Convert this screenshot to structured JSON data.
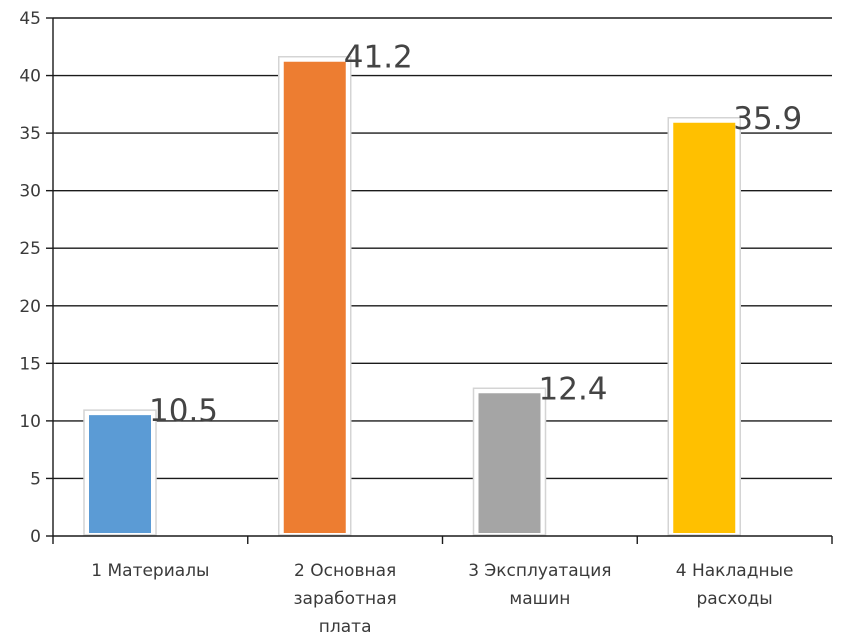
{
  "chart_data": {
    "type": "bar",
    "categories": [
      [
        "1 Материалы"
      ],
      [
        "2 Основная",
        "заработная",
        "плата"
      ],
      [
        "3 Эксплуатация",
        "машин"
      ],
      [
        "4 Накладные",
        "расходы"
      ]
    ],
    "values": [
      10.5,
      41.2,
      12.4,
      35.9
    ],
    "data_labels": [
      "10.5",
      "41.2",
      "12.4",
      "35.9"
    ],
    "bar_colors": [
      "#5b9bd5",
      "#ed7d31",
      "#a5a5a5",
      "#ffc000"
    ],
    "ylim": [
      0,
      45
    ],
    "yticks": [
      0,
      5,
      10,
      15,
      20,
      25,
      30,
      35,
      40,
      45
    ],
    "grid": true,
    "title": "",
    "xlabel": "",
    "ylabel": ""
  }
}
